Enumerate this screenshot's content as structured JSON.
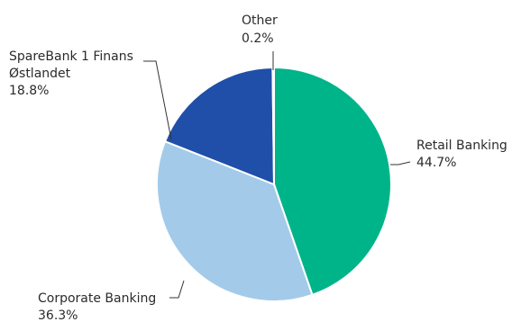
{
  "chart_data": {
    "type": "pie",
    "start_angle_deg": 0,
    "direction": "clockwise",
    "slices": [
      {
        "label": "Retail Banking",
        "value": 44.7,
        "value_label": "44.7%",
        "color": "#00b48a"
      },
      {
        "label": "Corporate Banking",
        "value": 36.3,
        "value_label": "36.3%",
        "color": "#a3cbe9"
      },
      {
        "label_lines": [
          "SpareBank 1 Finans",
          "Østlandet"
        ],
        "value": 18.8,
        "value_label": "18.8%",
        "color": "#1f4fa8"
      },
      {
        "label": "Other",
        "value": 0.2,
        "value_label": "0.2%",
        "color": "#4fb3d9"
      }
    ],
    "legend": "none",
    "slice_border_color": "#ffffff",
    "leader_line_color": "#333333"
  }
}
